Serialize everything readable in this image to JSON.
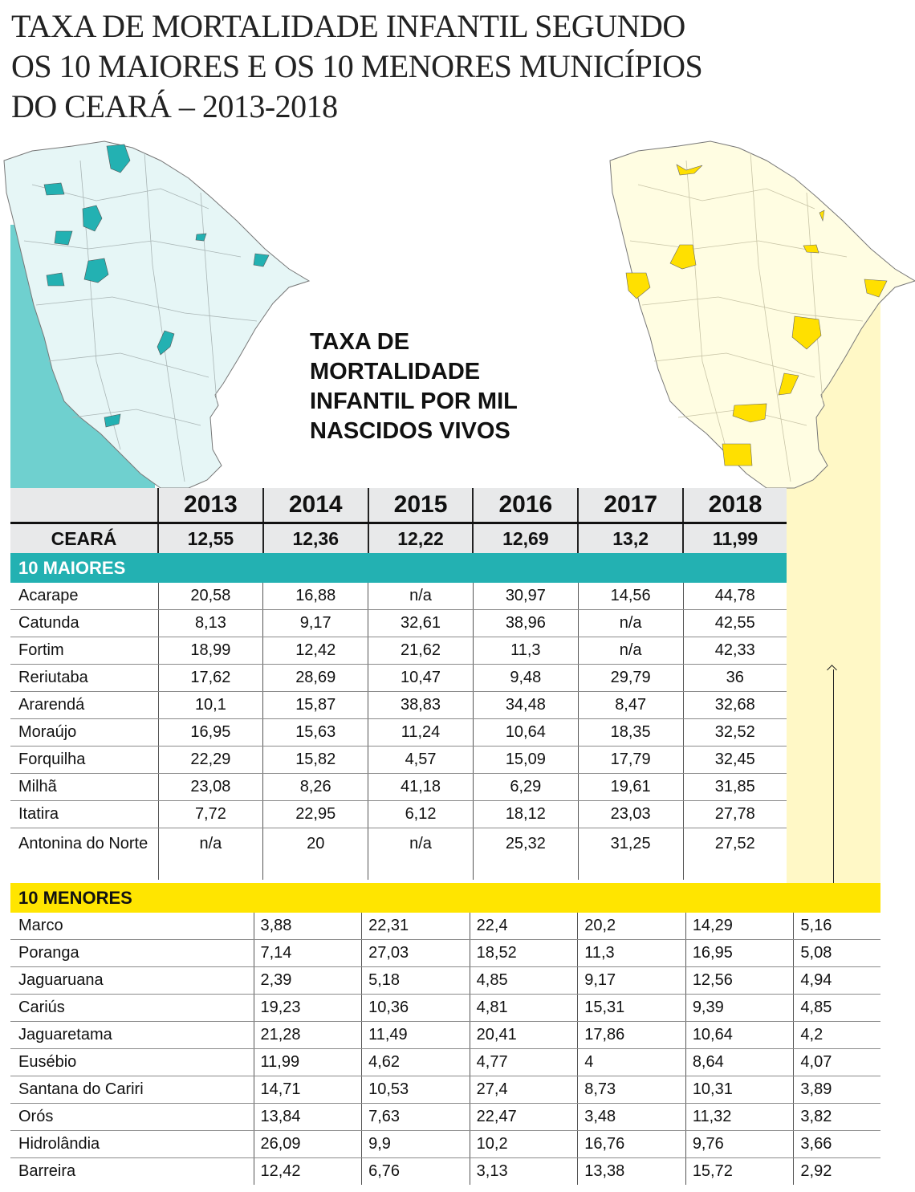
{
  "title_lines": [
    "TAXA DE MORTALIDADE INFANTIL SEGUNDO",
    "OS 10 MAIORES E OS 10 MENORES MUNICÍPIOS",
    "DO CEARÁ – 2013-2018"
  ],
  "subtitle_lines": [
    "TAXA DE",
    "MORTALIDADE",
    "INFANTIL POR MIL",
    "NASCIDOS VIVOS"
  ],
  "colors": {
    "maiores": "#23b1b2",
    "menores": "#ffe500",
    "map_left_fill": "#e6f6f6",
    "map_right_fill": "#fffde2",
    "header_bg": "#e8e9ea"
  },
  "chart_data": {
    "type": "table",
    "title": "TAXA DE MORTALIDADE INFANTIL SEGUNDO OS 10 MAIORES E OS 10 MENORES MUNICÍPIOS DO CEARÁ – 2013-2018",
    "unit": "TAXA DE MORTALIDADE INFANTIL POR MIL NASCIDOS VIVOS",
    "years": [
      "2013",
      "2014",
      "2015",
      "2016",
      "2017",
      "2018"
    ],
    "ceara": {
      "label": "CEARÁ",
      "values": [
        "12,55",
        "12,36",
        "12,22",
        "12,69",
        "13,2",
        "11,99"
      ]
    },
    "maiores": {
      "label": "10 MAIORES",
      "rows": [
        {
          "name": "Acarape",
          "values": [
            "20,58",
            "16,88",
            "n/a",
            "30,97",
            "14,56",
            "44,78"
          ]
        },
        {
          "name": "Catunda",
          "values": [
            "8,13",
            "9,17",
            "32,61",
            "38,96",
            "n/a",
            "42,55"
          ]
        },
        {
          "name": "Fortim",
          "values": [
            "18,99",
            "12,42",
            "21,62",
            "11,3",
            "n/a",
            "42,33"
          ]
        },
        {
          "name": "Reriutaba",
          "values": [
            "17,62",
            "28,69",
            "10,47",
            "9,48",
            "29,79",
            "36"
          ]
        },
        {
          "name": "Ararendá",
          "values": [
            "10,1",
            "15,87",
            "38,83",
            "34,48",
            "8,47",
            "32,68"
          ]
        },
        {
          "name": "Moraújo",
          "values": [
            "16,95",
            "15,63",
            "11,24",
            "10,64",
            "18,35",
            "32,52"
          ]
        },
        {
          "name": "Forquilha",
          "values": [
            "22,29",
            "15,82",
            "4,57",
            "15,09",
            "17,79",
            "32,45"
          ]
        },
        {
          "name": "Milhã",
          "values": [
            "23,08",
            "8,26",
            "41,18",
            "6,29",
            "19,61",
            "31,85"
          ]
        },
        {
          "name": "Itatira",
          "values": [
            "7,72",
            "22,95",
            "6,12",
            "18,12",
            "23,03",
            "27,78"
          ]
        },
        {
          "name": "Antonina do Norte",
          "values": [
            "n/a",
            "20",
            "n/a",
            "25,32",
            "31,25",
            "27,52"
          ]
        }
      ]
    },
    "menores": {
      "label": "10 MENORES",
      "rows": [
        {
          "name": "Marco",
          "values": [
            "3,88",
            "22,31",
            "22,4",
            "20,2",
            "14,29",
            "5,16"
          ]
        },
        {
          "name": "Poranga",
          "values": [
            "7,14",
            "27,03",
            "18,52",
            "11,3",
            "16,95",
            "5,08"
          ]
        },
        {
          "name": "Jaguaruana",
          "values": [
            "2,39",
            "5,18",
            "4,85",
            "9,17",
            "12,56",
            "4,94"
          ]
        },
        {
          "name": "Cariús",
          "values": [
            "19,23",
            "10,36",
            "4,81",
            "15,31",
            "9,39",
            "4,85"
          ]
        },
        {
          "name": "Jaguaretama",
          "values": [
            "21,28",
            "11,49",
            "20,41",
            "17,86",
            "10,64",
            "4,2"
          ]
        },
        {
          "name": "Eusébio",
          "values": [
            "11,99",
            "4,62",
            "4,77",
            "4",
            "8,64",
            "4,07"
          ]
        },
        {
          "name": "Santana do Cariri",
          "values": [
            "14,71",
            "10,53",
            "27,4",
            "8,73",
            "10,31",
            "3,89"
          ]
        },
        {
          "name": "Orós",
          "values": [
            "13,84",
            "7,63",
            "22,47",
            "3,48",
            "11,32",
            "3,82"
          ]
        },
        {
          "name": "Hidrolândia",
          "values": [
            "26,09",
            "9,9",
            "10,2",
            "16,76",
            "9,76",
            "3,66"
          ]
        },
        {
          "name": "Barreira",
          "values": [
            "12,42",
            "6,76",
            "3,13",
            "13,38",
            "15,72",
            "2,92"
          ]
        }
      ]
    }
  }
}
